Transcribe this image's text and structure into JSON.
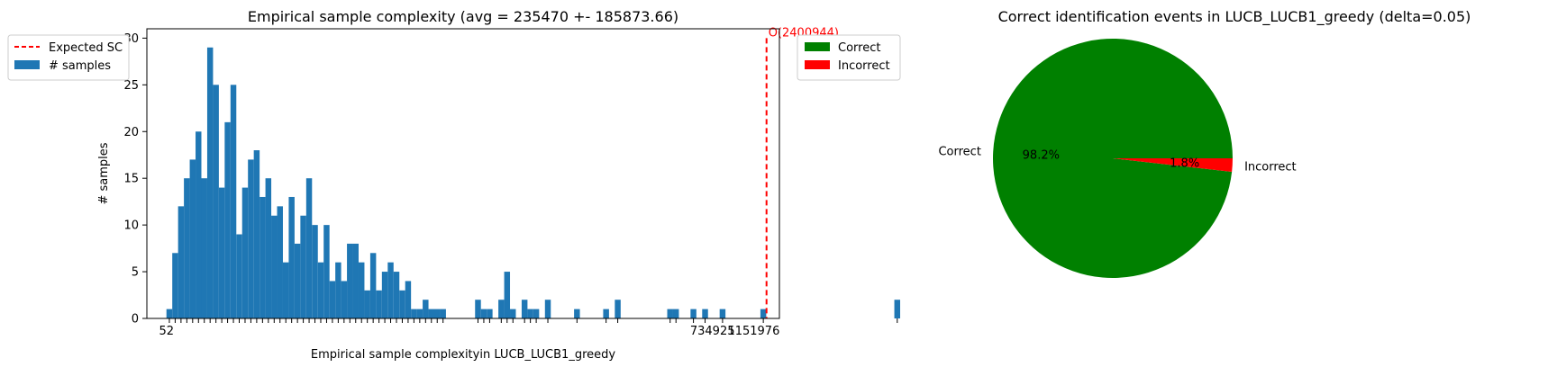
{
  "charts": [
    {
      "type": "bar",
      "title": "Empirical sample complexity (avg = 235470 +- 185873.66)",
      "xlabel": "Empirical sample complexityin LUCB_LUCB1_greedy",
      "ylabel": "# samples",
      "ylim": [
        0,
        31
      ],
      "yticks": [
        0,
        5,
        10,
        15,
        20,
        25,
        30
      ],
      "xlim": [
        -8000,
        1220000
      ],
      "bin_start": 30000,
      "bin_width": 11305,
      "counts": [
        1,
        7,
        12,
        15,
        17,
        20,
        15,
        29,
        25,
        14,
        21,
        25,
        9,
        14,
        17,
        18,
        13,
        15,
        11,
        12,
        6,
        13,
        8,
        11,
        15,
        10,
        6,
        10,
        4,
        6,
        4,
        8,
        8,
        6,
        3,
        7,
        3,
        5,
        6,
        5,
        3,
        4,
        1,
        1,
        2,
        1,
        1,
        1,
        0,
        0,
        0,
        0,
        0,
        2,
        1,
        1,
        0,
        2,
        5,
        1,
        0,
        2,
        1,
        1,
        0,
        2,
        0,
        0,
        0,
        0,
        1,
        0,
        0,
        0,
        0,
        1,
        0,
        2,
        0,
        0,
        0,
        0,
        0,
        0,
        0,
        0,
        1,
        1,
        0,
        0,
        1,
        0,
        1,
        0,
        0,
        1,
        0,
        0,
        0,
        0,
        0,
        0,
        1,
        0,
        0,
        0,
        0,
        0,
        0,
        0,
        0,
        0,
        0,
        0,
        0,
        0,
        0,
        0,
        0,
        0,
        0,
        0,
        0,
        0,
        0,
        2
      ],
      "series": [
        {
          "name": "# samples",
          "color": "#1f77b4"
        },
        {
          "name": "Expected SC",
          "color": "#ff0000"
        }
      ],
      "expected_sc_x": 1195000,
      "expected_sc_label": "O(2400944)",
      "xtick_labels": [
        {
          "x": 30000,
          "label": "52"
        },
        {
          "x": 1090000,
          "label": "734925"
        },
        {
          "x": 1170000,
          "label": "1151976"
        }
      ],
      "legend_position": "upper left, outside"
    },
    {
      "type": "pie",
      "title": "Correct identification events in LUCB_LUCB1_greedy (delta=0.05)",
      "slices": [
        {
          "label": "Correct",
          "value": 98.2,
          "pct_label": "98.2%",
          "color": "#008000"
        },
        {
          "label": "Incorrect",
          "value": 1.8,
          "pct_label": "1.8%",
          "color": "#ff0000"
        }
      ],
      "legend": [
        "Correct",
        "Incorrect"
      ],
      "legend_position": "upper left"
    }
  ]
}
